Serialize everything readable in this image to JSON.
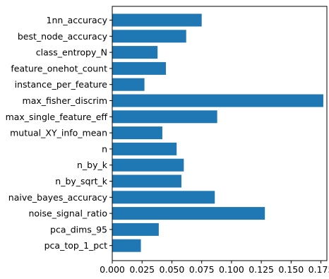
{
  "chart_data": {
    "type": "bar",
    "orientation": "horizontal",
    "title": "",
    "xlabel": "",
    "ylabel": "",
    "categories": [
      "1nn_accuracy",
      "best_node_accuracy",
      "class_entropy_N",
      "feature_onehot_count",
      "instance_per_feature",
      "max_fisher_discrim",
      "max_single_feature_eff",
      "mutual_XY_info_mean",
      "n",
      "n_by_k",
      "n_by_sqrt_k",
      "naive_bayes_accuracy",
      "noise_signal_ratio",
      "pca_dims_95",
      "pca_top_1_pct"
    ],
    "values": [
      0.075,
      0.062,
      0.038,
      0.045,
      0.027,
      0.177,
      0.088,
      0.042,
      0.054,
      0.06,
      0.058,
      0.086,
      0.128,
      0.039,
      0.024
    ],
    "xlim": [
      0,
      0.18
    ],
    "xticks": [
      "0.000",
      "0.025",
      "0.050",
      "0.075",
      "0.100",
      "0.125",
      "0.150",
      "0.175"
    ],
    "bar_color": "#1f77b4",
    "grid": false,
    "legend": "none"
  }
}
